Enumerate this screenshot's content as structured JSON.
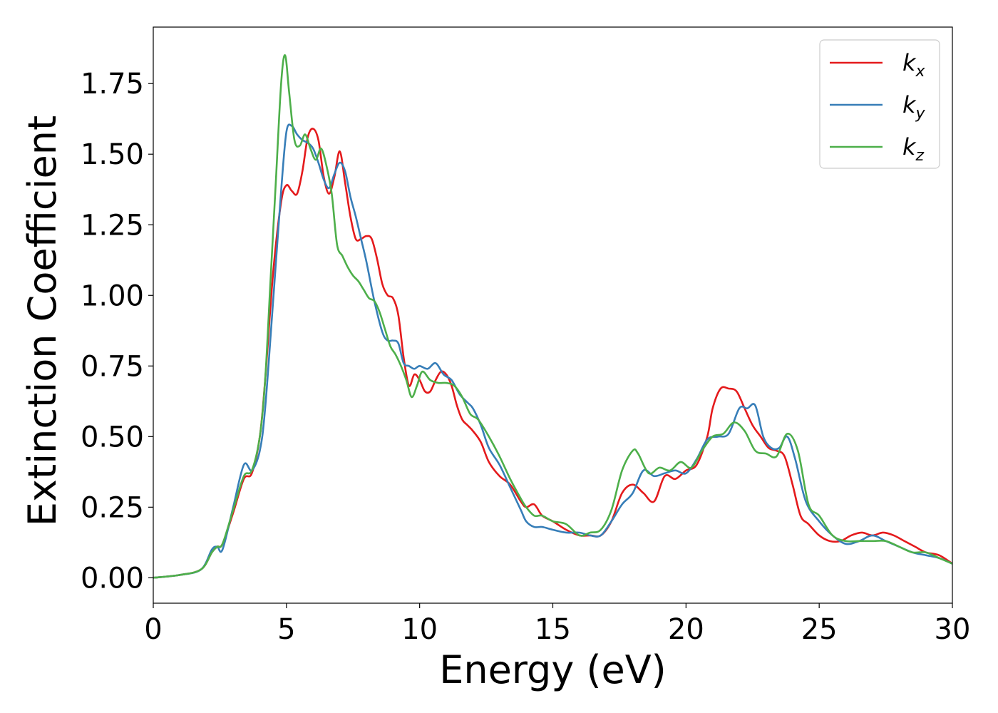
{
  "chart_data": {
    "type": "line",
    "title": "",
    "xlabel": "Energy (eV)",
    "ylabel": "Extinction Coefficient",
    "xlim": [
      0,
      30
    ],
    "ylim": [
      -0.09,
      1.95
    ],
    "xticks": [
      0,
      5,
      10,
      15,
      20,
      25,
      30
    ],
    "xtick_labels": [
      "0",
      "5",
      "10",
      "15",
      "20",
      "25",
      "30"
    ],
    "yticks": [
      0.0,
      0.25,
      0.5,
      0.75,
      1.0,
      1.25,
      1.5,
      1.75
    ],
    "ytick_labels": [
      "0.00",
      "0.25",
      "0.50",
      "0.75",
      "1.00",
      "1.25",
      "1.50",
      "1.75"
    ],
    "grid": false,
    "legend_position": "top-right",
    "series": [
      {
        "name": "kx",
        "label_base": "k",
        "label_sub": "x",
        "color": "#e41a1c",
        "x": [
          0,
          1,
          1.8,
          2.2,
          2.4,
          2.6,
          3,
          3.4,
          3.7,
          4.0,
          4.2,
          4.5,
          4.8,
          5.0,
          5.2,
          5.4,
          5.6,
          5.8,
          6.0,
          6.2,
          6.4,
          6.6,
          6.8,
          7.0,
          7.2,
          7.4,
          7.6,
          7.8,
          8.0,
          8.2,
          8.4,
          8.6,
          8.8,
          9.0,
          9.2,
          9.4,
          9.6,
          9.8,
          10.0,
          10.2,
          10.4,
          10.6,
          10.8,
          11.0,
          11.2,
          11.4,
          11.6,
          11.8,
          12.0,
          12.3,
          12.6,
          13.0,
          13.4,
          13.8,
          14.0,
          14.3,
          14.6,
          15.0,
          15.5,
          16.0,
          16.4,
          16.8,
          17.2,
          17.6,
          18.0,
          18.4,
          18.8,
          19.2,
          19.6,
          20.0,
          20.4,
          20.8,
          21.0,
          21.3,
          21.6,
          21.9,
          22.2,
          22.5,
          22.8,
          23.1,
          23.4,
          23.7,
          24.0,
          24.3,
          24.6,
          25.0,
          25.4,
          25.8,
          26.2,
          26.6,
          27.0,
          27.4,
          27.8,
          28.2,
          28.6,
          29.0,
          29.5,
          30.0
        ],
        "y": [
          0.0,
          0.01,
          0.03,
          0.09,
          0.11,
          0.12,
          0.23,
          0.35,
          0.37,
          0.5,
          0.7,
          1.08,
          1.33,
          1.39,
          1.37,
          1.36,
          1.44,
          1.56,
          1.59,
          1.55,
          1.42,
          1.36,
          1.42,
          1.51,
          1.4,
          1.28,
          1.2,
          1.2,
          1.21,
          1.2,
          1.13,
          1.04,
          1.0,
          0.99,
          0.93,
          0.78,
          0.68,
          0.72,
          0.7,
          0.66,
          0.66,
          0.7,
          0.73,
          0.72,
          0.68,
          0.61,
          0.56,
          0.54,
          0.52,
          0.48,
          0.41,
          0.36,
          0.33,
          0.27,
          0.25,
          0.26,
          0.22,
          0.2,
          0.17,
          0.15,
          0.15,
          0.15,
          0.2,
          0.3,
          0.33,
          0.3,
          0.27,
          0.36,
          0.35,
          0.38,
          0.4,
          0.5,
          0.6,
          0.67,
          0.67,
          0.66,
          0.6,
          0.54,
          0.5,
          0.46,
          0.45,
          0.43,
          0.33,
          0.22,
          0.19,
          0.15,
          0.13,
          0.13,
          0.15,
          0.16,
          0.15,
          0.16,
          0.15,
          0.13,
          0.11,
          0.09,
          0.08,
          0.05
        ]
      },
      {
        "name": "ky",
        "label_base": "k",
        "label_sub": "y",
        "color": "#377eb8",
        "x": [
          0,
          1,
          1.8,
          2.2,
          2.4,
          2.6,
          3.0,
          3.4,
          3.7,
          4.0,
          4.2,
          4.5,
          4.8,
          5.0,
          5.2,
          5.4,
          5.6,
          5.8,
          6.0,
          6.2,
          6.4,
          6.6,
          6.8,
          7.0,
          7.2,
          7.4,
          7.6,
          7.8,
          8.0,
          8.3,
          8.6,
          8.8,
          9.0,
          9.2,
          9.4,
          9.6,
          9.8,
          10.0,
          10.3,
          10.6,
          10.9,
          11.2,
          11.5,
          11.8,
          12.0,
          12.3,
          12.6,
          13.0,
          13.4,
          13.8,
          14.0,
          14.3,
          14.6,
          15.0,
          15.5,
          16.0,
          16.4,
          16.8,
          17.2,
          17.6,
          18.0,
          18.4,
          18.8,
          19.2,
          19.6,
          20.0,
          20.4,
          20.8,
          21.2,
          21.6,
          22.0,
          22.3,
          22.6,
          22.9,
          23.2,
          23.5,
          23.8,
          24.1,
          24.5,
          25.0,
          25.5,
          26.0,
          26.5,
          27.0,
          27.5,
          28.0,
          28.5,
          29.0,
          29.5,
          30.0
        ],
        "y": [
          0.0,
          0.01,
          0.03,
          0.1,
          0.11,
          0.1,
          0.25,
          0.4,
          0.38,
          0.45,
          0.6,
          0.98,
          1.37,
          1.58,
          1.6,
          1.57,
          1.55,
          1.54,
          1.52,
          1.47,
          1.41,
          1.38,
          1.43,
          1.47,
          1.44,
          1.35,
          1.28,
          1.2,
          1.12,
          0.98,
          0.87,
          0.84,
          0.84,
          0.83,
          0.76,
          0.75,
          0.74,
          0.75,
          0.74,
          0.76,
          0.72,
          0.7,
          0.65,
          0.62,
          0.6,
          0.54,
          0.46,
          0.4,
          0.32,
          0.24,
          0.2,
          0.18,
          0.18,
          0.17,
          0.16,
          0.16,
          0.15,
          0.15,
          0.2,
          0.26,
          0.3,
          0.38,
          0.36,
          0.37,
          0.38,
          0.37,
          0.42,
          0.49,
          0.5,
          0.51,
          0.6,
          0.6,
          0.61,
          0.5,
          0.46,
          0.46,
          0.5,
          0.42,
          0.27,
          0.2,
          0.15,
          0.12,
          0.13,
          0.15,
          0.13,
          0.11,
          0.09,
          0.08,
          0.07,
          0.05
        ]
      },
      {
        "name": "kz",
        "label_base": "k",
        "label_sub": "z",
        "color": "#4daf4a",
        "x": [
          0,
          1,
          1.8,
          2.2,
          2.4,
          2.6,
          3.0,
          3.4,
          3.7,
          4.0,
          4.2,
          4.4,
          4.6,
          4.8,
          4.95,
          5.1,
          5.3,
          5.5,
          5.7,
          5.9,
          6.1,
          6.3,
          6.5,
          6.7,
          6.9,
          7.1,
          7.3,
          7.5,
          7.7,
          7.9,
          8.1,
          8.3,
          8.5,
          8.7,
          8.9,
          9.1,
          9.3,
          9.5,
          9.7,
          9.9,
          10.1,
          10.4,
          10.7,
          11.0,
          11.3,
          11.6,
          11.9,
          12.2,
          12.6,
          13.0,
          13.4,
          13.8,
          14.0,
          14.3,
          14.6,
          15.0,
          15.5,
          16.0,
          16.4,
          16.8,
          17.2,
          17.6,
          18.0,
          18.2,
          18.6,
          19.0,
          19.4,
          19.8,
          20.2,
          20.6,
          21.0,
          21.4,
          21.8,
          22.2,
          22.6,
          23.0,
          23.4,
          23.8,
          24.2,
          24.6,
          25.0,
          25.5,
          26.0,
          26.5,
          27.0,
          27.5,
          28.0,
          28.5,
          29.0,
          29.5,
          30.0
        ],
        "y": [
          0.0,
          0.01,
          0.03,
          0.09,
          0.11,
          0.12,
          0.24,
          0.36,
          0.38,
          0.5,
          0.7,
          1.05,
          1.4,
          1.75,
          1.85,
          1.72,
          1.55,
          1.53,
          1.57,
          1.52,
          1.48,
          1.52,
          1.46,
          1.36,
          1.18,
          1.14,
          1.1,
          1.07,
          1.05,
          1.02,
          0.99,
          0.98,
          0.94,
          0.88,
          0.82,
          0.79,
          0.75,
          0.7,
          0.64,
          0.68,
          0.73,
          0.7,
          0.69,
          0.69,
          0.68,
          0.64,
          0.58,
          0.56,
          0.5,
          0.43,
          0.35,
          0.28,
          0.25,
          0.22,
          0.22,
          0.2,
          0.19,
          0.15,
          0.16,
          0.17,
          0.24,
          0.38,
          0.45,
          0.44,
          0.37,
          0.39,
          0.38,
          0.41,
          0.39,
          0.45,
          0.5,
          0.51,
          0.55,
          0.52,
          0.45,
          0.44,
          0.43,
          0.51,
          0.45,
          0.26,
          0.22,
          0.15,
          0.13,
          0.13,
          0.13,
          0.13,
          0.11,
          0.09,
          0.09,
          0.07,
          0.05
        ]
      }
    ]
  }
}
